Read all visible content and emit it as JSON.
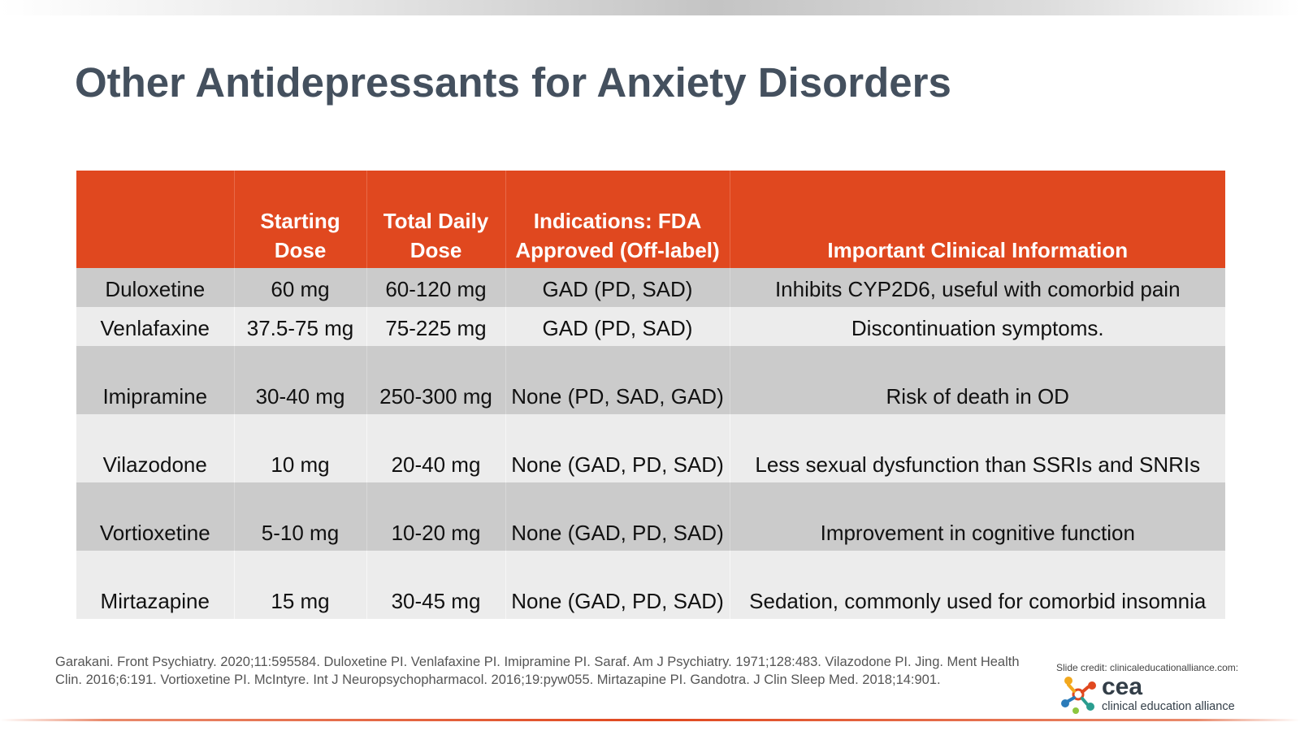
{
  "slide": {
    "title": "Other Antidepressants for Anxiety Disorders"
  },
  "table": {
    "headers": [
      "",
      "Starting Dose",
      "Total Daily Dose",
      "Indications: FDA Approved (Off-label)",
      "Important Clinical Information"
    ],
    "rows": [
      {
        "drug": "Duloxetine",
        "start": "60 mg",
        "total": "60-120 mg",
        "ind": "GAD (PD, SAD)",
        "info": "Inhibits CYP2D6, useful with comorbid pain"
      },
      {
        "drug": "Venlafaxine",
        "start": "37.5-75 mg",
        "total": "75-225 mg",
        "ind": "GAD (PD, SAD)",
        "info": "Discontinuation symptoms."
      },
      {
        "drug": "Imipramine",
        "start": "30-40 mg",
        "total": "250-300 mg",
        "ind": "None (PD, SAD, GAD)",
        "info": "Risk of death in OD"
      },
      {
        "drug": "Vilazodone",
        "start": "10 mg",
        "total": "20-40 mg",
        "ind": "None (GAD, PD, SAD)",
        "info": "Less sexual dysfunction than SSRIs and SNRIs"
      },
      {
        "drug": "Vortioxetine",
        "start": "5-10 mg",
        "total": "10-20 mg",
        "ind": "None (GAD, PD, SAD)",
        "info": "Improvement in cognitive function"
      },
      {
        "drug": "Mirtazapine",
        "start": "15 mg",
        "total": "30-45 mg",
        "ind": "None (GAD, PD, SAD)",
        "info": "Sedation, commonly used for comorbid insomnia"
      }
    ]
  },
  "footer": {
    "references": "Garakani. Front Psychiatry. 2020;11:595584. Duloxetine PI. Venlafaxine PI. Imipramine PI. Saraf. Am J Psychiatry. 1971;128:483. Vilazodone PI. Jing. Ment Health Clin. 2016;6:191. Vortioxetine PI. McIntyre. Int J Neuropsychopharmacol. 2016;19:pyw055. Mirtazapine PI. Gandotra. J Clin Sleep Med. 2018;14:901.",
    "credit": "Slide credit: clinicaleducationalliance.com:",
    "logo_name": "cea",
    "logo_sub": "clinical education alliance"
  },
  "colors": {
    "header_bg": "#e0481f",
    "title_color": "#44505e",
    "row_dark": "#cbcbcb",
    "row_light": "#ececec"
  },
  "icons": {
    "logo": "cea-logo-icon"
  }
}
